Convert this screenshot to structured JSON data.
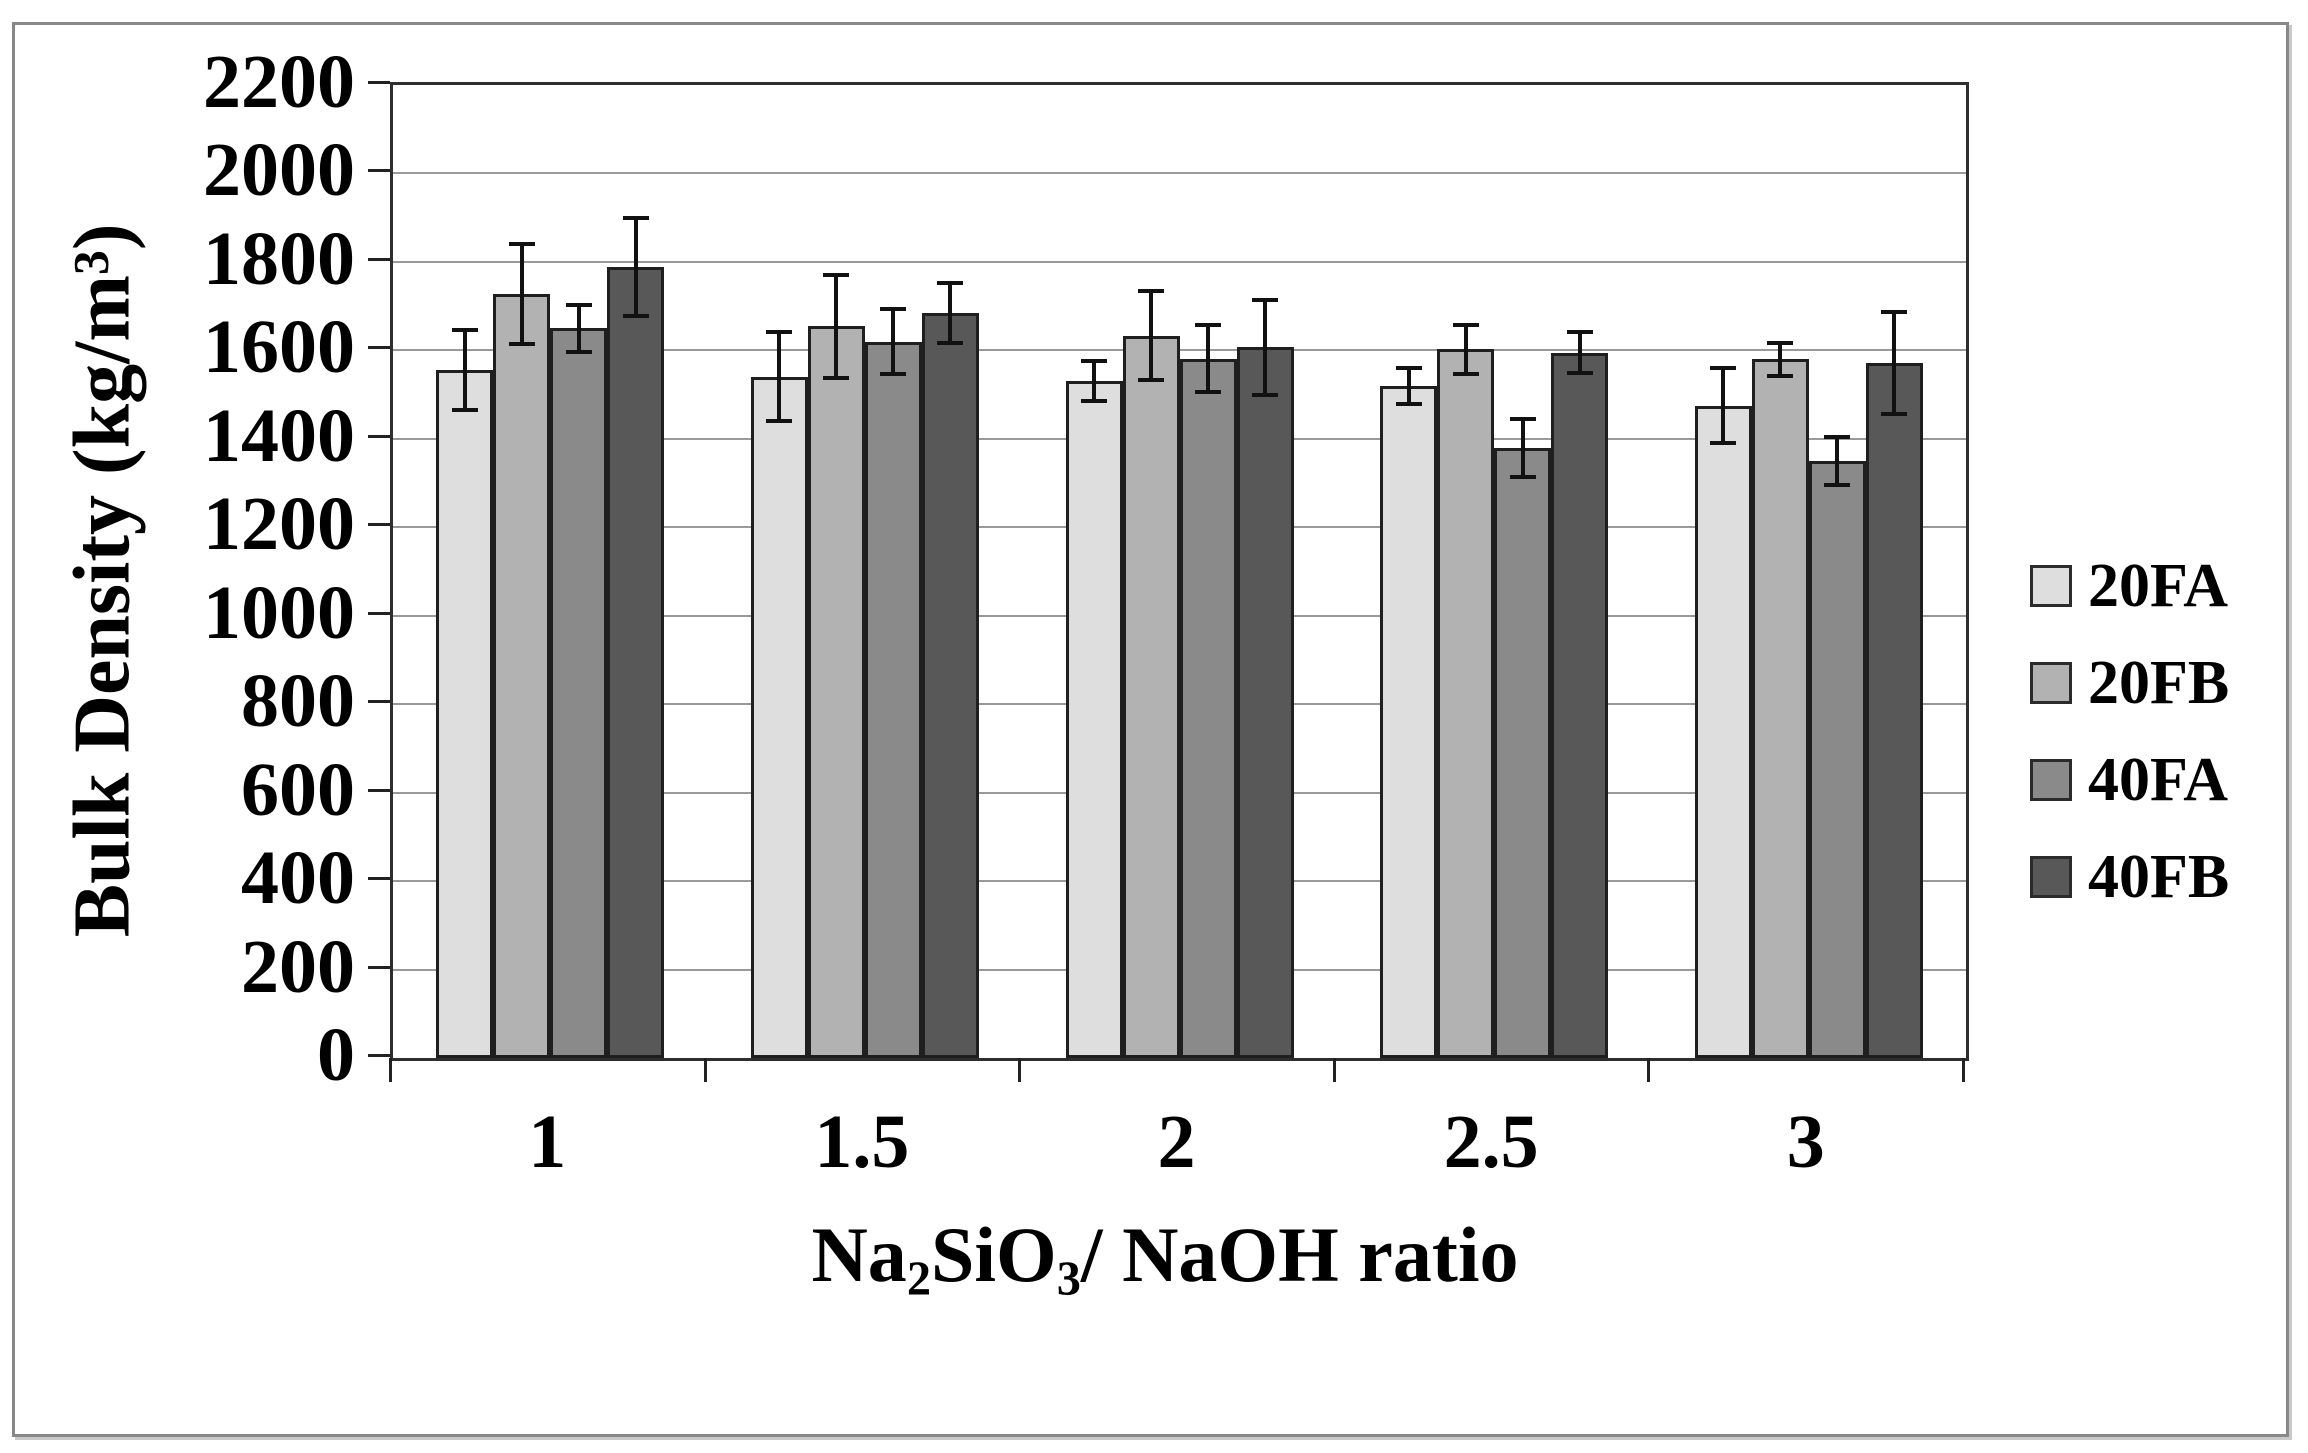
{
  "figure": {
    "background": "#ffffff",
    "border_color": "#888888"
  },
  "chart_data": {
    "type": "bar",
    "title": "",
    "xlabel": "Na2SiO3/ NaOH ratio",
    "xlabel_parts": [
      {
        "t": "Na"
      },
      {
        "t": "2",
        "style": "sub"
      },
      {
        "t": "SiO"
      },
      {
        "t": "3",
        "style": "sub"
      },
      {
        "t": "/ NaOH ratio"
      }
    ],
    "ylabel": "Bulk Density (kg/m3)",
    "ylabel_parts": [
      {
        "t": "Bulk Density (kg/m"
      },
      {
        "t": "3",
        "style": "sup"
      },
      {
        "t": ")"
      }
    ],
    "categories": [
      "1",
      "1.5",
      "2",
      "2.5",
      "3"
    ],
    "ylim": [
      0,
      2200
    ],
    "y_tick_step": 200,
    "y_ticks": [
      0,
      200,
      400,
      600,
      800,
      1000,
      1200,
      1400,
      1600,
      1800,
      2000,
      2200
    ],
    "grid": true,
    "legend_position": "right",
    "series": [
      {
        "name": "20FA",
        "color": "#dedede",
        "values": [
          1555,
          1540,
          1530,
          1520,
          1475
        ],
        "errors": [
          95,
          105,
          50,
          45,
          90
        ]
      },
      {
        "name": "20FB",
        "color": "#b2b2b2",
        "values": [
          1728,
          1654,
          1633,
          1603,
          1580
        ],
        "errors": [
          118,
          120,
          105,
          60,
          42
        ]
      },
      {
        "name": "40FA",
        "color": "#8a8a8a",
        "values": [
          1650,
          1620,
          1581,
          1380,
          1350
        ],
        "errors": [
          58,
          78,
          80,
          70,
          58
        ]
      },
      {
        "name": "40FB",
        "color": "#585858",
        "values": [
          1789,
          1684,
          1607,
          1595,
          1572
        ],
        "errors": [
          115,
          72,
          112,
          50,
          120
        ]
      }
    ]
  }
}
